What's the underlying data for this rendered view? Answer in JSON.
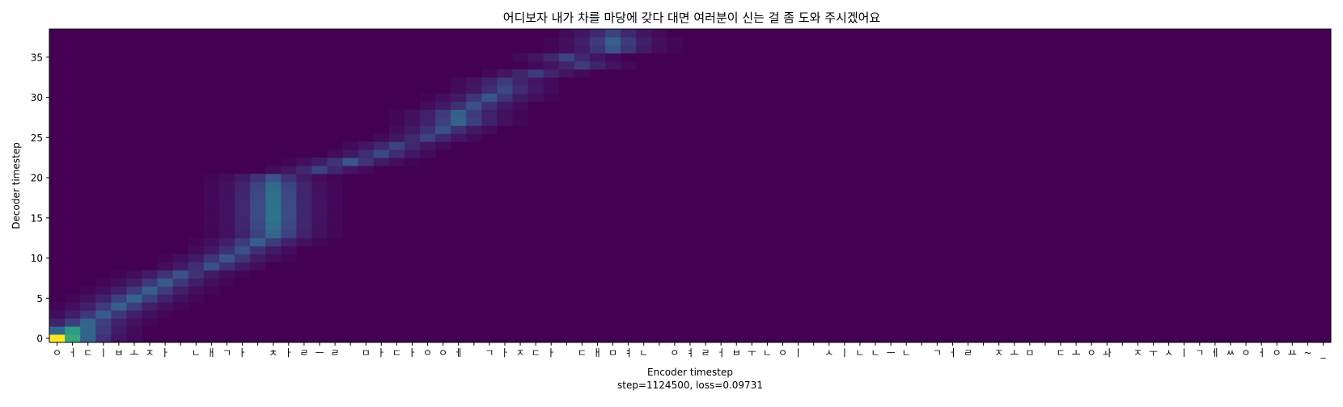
{
  "chart_data": {
    "type": "heatmap",
    "title": "어디보자 내가 차를 마당에 갖다 대면 여러분이 신는 걸 좀 도와 주시겠어요",
    "xlabel": "Encoder timestep",
    "ylabel": "Decoder timestep",
    "caption": "step=1124500, loss=0.09731",
    "x_tick_labels": [
      "ㅇ",
      "ㅓ",
      "ㄷ",
      "ㅣ",
      "ㅂ",
      "ㅗ",
      "ㅈ",
      "ㅏ",
      " ",
      "ㄴ",
      "ㅐ",
      "ㄱ",
      "ㅏ",
      " ",
      "ㅊ",
      "ㅏ",
      "ㄹ",
      "ㅡ",
      "ㄹ",
      " ",
      "ㅁ",
      "ㅏ",
      "ㄷ",
      "ㅏ",
      "ㅇ",
      "ㅇ",
      "ㅔ",
      " ",
      "ㄱ",
      "ㅏ",
      "ㅈ",
      "ㄷ",
      "ㅏ",
      " ",
      "ㄷ",
      "ㅐ",
      "ㅁ",
      "ㅕ",
      "ㄴ",
      " ",
      "ㅇ",
      "ㅕ",
      "ㄹ",
      "ㅓ",
      "ㅂ",
      "ㅜ",
      "ㄴ",
      "ㅇ",
      "ㅣ",
      " ",
      "ㅅ",
      "ㅣ",
      "ㄴ",
      "ㄴ",
      "ㅡ",
      "ㄴ",
      " ",
      "ㄱ",
      "ㅓ",
      "ㄹ",
      " ",
      "ㅈ",
      "ㅗ",
      "ㅁ",
      " ",
      "ㄷ",
      "ㅗ",
      "ㅇ",
      "ㅘ",
      " ",
      "ㅈ",
      "ㅜ",
      "ㅅ",
      "ㅣ",
      "ㄱ",
      "ㅔ",
      "ㅆ",
      "ㅇ",
      "ㅓ",
      "ㅇ",
      "ㅛ",
      "~",
      "_"
    ],
    "y_ticks": [
      0,
      5,
      10,
      15,
      20,
      25,
      30,
      35
    ],
    "xlim": [
      -0.5,
      82.5
    ],
    "ylim": [
      -0.5,
      38.5
    ],
    "n_encoder_steps": 83,
    "n_decoder_steps": 39,
    "colormap": "viridis",
    "background_color": "#440154",
    "peak_color": "#fde725",
    "grid": false,
    "attention_peaks": [
      {
        "decoder": 0,
        "encoder": 0,
        "weight": 1.0
      },
      {
        "decoder": 1,
        "encoder": 1,
        "weight": 0.55
      },
      {
        "decoder": 2,
        "encoder": 2,
        "weight": 0.32
      },
      {
        "decoder": 3,
        "encoder": 3,
        "weight": 0.28
      },
      {
        "decoder": 4,
        "encoder": 4,
        "weight": 0.3
      },
      {
        "decoder": 5,
        "encoder": 5,
        "weight": 0.32
      },
      {
        "decoder": 6,
        "encoder": 6,
        "weight": 0.3
      },
      {
        "decoder": 7,
        "encoder": 7,
        "weight": 0.28
      },
      {
        "decoder": 8,
        "encoder": 8,
        "weight": 0.25
      },
      {
        "decoder": 9,
        "encoder": 10,
        "weight": 0.24
      },
      {
        "decoder": 10,
        "encoder": 11,
        "weight": 0.26
      },
      {
        "decoder": 11,
        "encoder": 12,
        "weight": 0.24
      },
      {
        "decoder": 12,
        "encoder": 13,
        "weight": 0.3
      },
      {
        "decoder": 13,
        "encoder": 14,
        "weight": 0.33
      },
      {
        "decoder": 14,
        "encoder": 14,
        "weight": 0.36
      },
      {
        "decoder": 15,
        "encoder": 14,
        "weight": 0.38
      },
      {
        "decoder": 16,
        "encoder": 14,
        "weight": 0.38
      },
      {
        "decoder": 17,
        "encoder": 14,
        "weight": 0.37
      },
      {
        "decoder": 18,
        "encoder": 14,
        "weight": 0.36
      },
      {
        "decoder": 19,
        "encoder": 14,
        "weight": 0.35
      },
      {
        "decoder": 20,
        "encoder": 14,
        "weight": 0.25
      },
      {
        "decoder": 21,
        "encoder": 17,
        "weight": 0.2
      },
      {
        "decoder": 22,
        "encoder": 19,
        "weight": 0.26
      },
      {
        "decoder": 23,
        "encoder": 21,
        "weight": 0.22
      },
      {
        "decoder": 24,
        "encoder": 22,
        "weight": 0.2
      },
      {
        "decoder": 25,
        "encoder": 24,
        "weight": 0.2
      },
      {
        "decoder": 26,
        "encoder": 25,
        "weight": 0.24
      },
      {
        "decoder": 27,
        "encoder": 26,
        "weight": 0.32
      },
      {
        "decoder": 28,
        "encoder": 26,
        "weight": 0.3
      },
      {
        "decoder": 29,
        "encoder": 27,
        "weight": 0.24
      },
      {
        "decoder": 30,
        "encoder": 28,
        "weight": 0.26
      },
      {
        "decoder": 31,
        "encoder": 29,
        "weight": 0.22
      },
      {
        "decoder": 32,
        "encoder": 29,
        "weight": 0.18
      },
      {
        "decoder": 33,
        "encoder": 31,
        "weight": 0.18
      },
      {
        "decoder": 34,
        "encoder": 34,
        "weight": 0.18
      },
      {
        "decoder": 35,
        "encoder": 33,
        "weight": 0.2
      },
      {
        "decoder": 36,
        "encoder": 36,
        "weight": 0.26
      },
      {
        "decoder": 37,
        "encoder": 36,
        "weight": 0.3
      },
      {
        "decoder": 38,
        "encoder": 36,
        "weight": 0.2
      }
    ]
  }
}
